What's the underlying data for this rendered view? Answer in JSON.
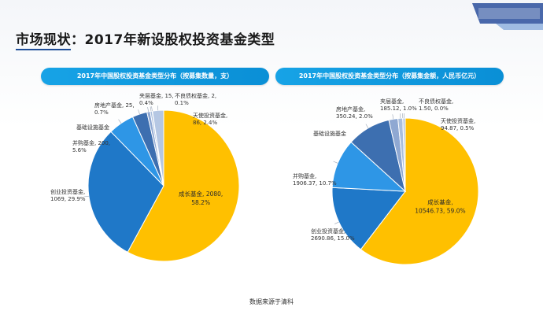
{
  "page": {
    "title": "市场现状：2017年新设股权投资基金类型",
    "source": "数据来源于清科"
  },
  "colors": {
    "header": "#10a0e4",
    "growth": "#FFC000",
    "vc": "#1F78C8",
    "ma": "#2E96E6",
    "infra": "#3D6FB0",
    "realestate": "#8FA8D2",
    "mezz": "#A9BEDD",
    "npl": "#C9D6EA",
    "angel": "#B5C7E3"
  },
  "chart_data": [
    {
      "type": "pie",
      "title": "2017年中国股权投资基金类型分布（按募集数量，支）",
      "slices": [
        {
          "label": "成长基金",
          "value": 2080,
          "percent": 58.2,
          "color_key": "growth",
          "text": "成长基金, 2080,",
          "pct_text": "58.2%"
        },
        {
          "label": "创业投资基金",
          "value": 1069,
          "percent": 29.9,
          "color_key": "vc",
          "text": "创业投资基金,",
          "pct_text": "1069, 29.9%"
        },
        {
          "label": "并购基金",
          "value": 200,
          "percent": 5.6,
          "color_key": "ma",
          "text": "并购基金, 200,",
          "pct_text": "5.6%"
        },
        {
          "label": "基础设施基金",
          "value": 114,
          "percent": 3.2,
          "color_key": "infra",
          "text": "基础设施基金",
          "pct_text": ""
        },
        {
          "label": "房地产基金",
          "value": 25,
          "percent": 0.7,
          "color_key": "realestate",
          "text": "房地产基金, 25,",
          "pct_text": "0.7%"
        },
        {
          "label": "夹层基金",
          "value": 15,
          "percent": 0.4,
          "color_key": "mezz",
          "text": "夹层基金, 15,",
          "pct_text": "0.4%"
        },
        {
          "label": "不良债权基金",
          "value": 2,
          "percent": 0.1,
          "color_key": "npl",
          "text": "不良债权基金, 2,",
          "pct_text": "0.1%"
        },
        {
          "label": "天使投资基金",
          "value": 86,
          "percent": 2.4,
          "color_key": "angel",
          "text": "天使投资基金,",
          "pct_text": "86, 2.4%"
        }
      ]
    },
    {
      "type": "pie",
      "title": "2017年中国股权投资基金类型分布（按募集金额，人民币亿元）",
      "slices": [
        {
          "label": "成长基金",
          "value": 10546.73,
          "percent": 59.0,
          "color_key": "growth",
          "text": "成长基金,",
          "pct_text": "10546.73, 59.0%"
        },
        {
          "label": "创业投资基金",
          "value": 2690.86,
          "percent": 15.0,
          "color_key": "vc",
          "text": "创业投资基金,",
          "pct_text": "2690.86, 15.0%"
        },
        {
          "label": "并购基金",
          "value": 1906.37,
          "percent": 10.7,
          "color_key": "ma",
          "text": "并购基金,",
          "pct_text": "1906.37, 10.7%"
        },
        {
          "label": "基础设施基金",
          "value": 1686.24,
          "percent": 9.4,
          "color_key": "infra",
          "text": "基础设施基金",
          "pct_text": ""
        },
        {
          "label": "房地产基金",
          "value": 350.24,
          "percent": 2.0,
          "color_key": "realestate",
          "text": "房地产基金,",
          "pct_text": "350.24, 2.0%"
        },
        {
          "label": "夹层基金",
          "value": 185.12,
          "percent": 1.0,
          "color_key": "mezz",
          "text": "夹层基金,",
          "pct_text": "185.12, 1.0%"
        },
        {
          "label": "不良债权基金",
          "value": 1.5,
          "percent": 0.0,
          "color_key": "npl",
          "text": "不良债权基金,",
          "pct_text": "1.50, 0.0%"
        },
        {
          "label": "天使投资基金",
          "value": 94.87,
          "percent": 0.5,
          "color_key": "angel",
          "text": "天使投资基金,",
          "pct_text": "94.87, 0.5%"
        }
      ]
    }
  ]
}
